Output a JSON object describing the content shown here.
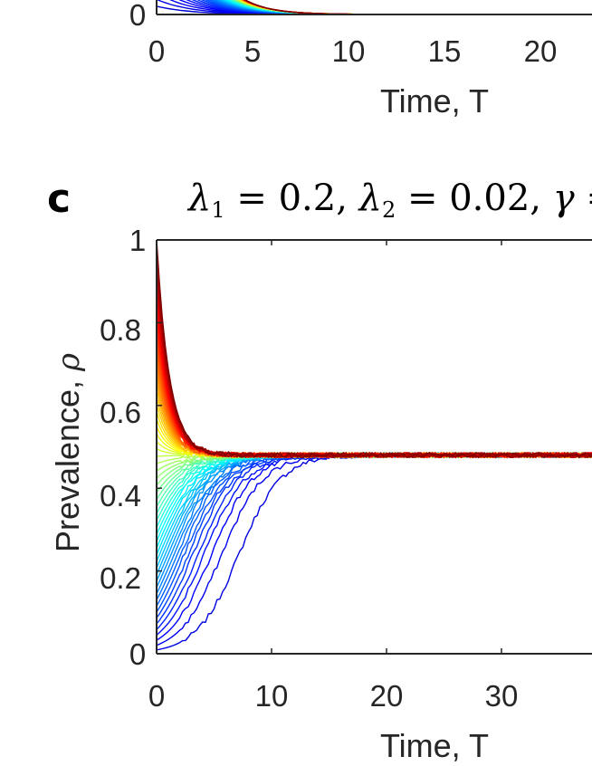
{
  "chart_data": [
    {
      "type": "line",
      "panel_label": "",
      "title": "",
      "xlabel": "Time, T",
      "ylabel": "",
      "x_tick_labels": [
        "0",
        "5",
        "10",
        "15",
        "20"
      ],
      "y_tick_labels": [
        "0"
      ],
      "xlim": [
        0,
        25
      ],
      "ylim": [
        0,
        1
      ],
      "series_count": 60,
      "colormap": "jet (blue to dark red)",
      "description_of_series": "Each curve decays towards 0 as time increases; curves with higher initial prevalence are warmer colours"
    },
    {
      "type": "line",
      "panel_label": "c",
      "title": {
        "lambda_symbol": "λ",
        "lambda1_sub": "1",
        "lambda1_value": " = 0.2, ",
        "lambda2_sub": "2",
        "lambda2_value": " = 0.02, ",
        "gamma_symbol": "γ",
        "gamma_tail": " ="
      },
      "xlabel": "Time, T",
      "ylabel": "Prevalence, ",
      "ylabel_symbol": "ρ",
      "x_tick_labels": [
        "0",
        "10",
        "20",
        "30"
      ],
      "y_tick_labels": [
        "0",
        "0.2",
        "0.4",
        "0.6",
        "0.8",
        "1"
      ],
      "xlim": [
        0,
        40
      ],
      "ylim": [
        0,
        1
      ],
      "x_ticks": [
        0,
        10,
        20,
        30
      ],
      "y_ticks": [
        0,
        0.2,
        0.4,
        0.6,
        0.8,
        1
      ],
      "series_count": 60,
      "colormap": "jet (blue to dark red)",
      "initial_prevalence_range": [
        0.0,
        1.0
      ],
      "steady_state": 0.48,
      "zero_initial_series_value": 0.0
    }
  ],
  "colors": {
    "axis": "#262626",
    "background": "#ffffff"
  }
}
